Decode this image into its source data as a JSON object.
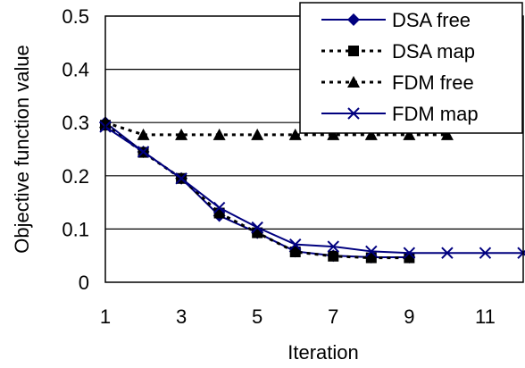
{
  "chart_data": {
    "type": "line",
    "xlabel": "Iteration",
    "ylabel": "Objective function value",
    "xlim": [
      1,
      12
    ],
    "ylim": [
      0,
      0.5
    ],
    "xticks": [
      1,
      3,
      5,
      7,
      9,
      11
    ],
    "yticks": [
      0,
      0.1,
      0.2,
      0.3,
      0.4,
      0.5
    ],
    "ytick_labels": [
      "0",
      "0.1",
      "0.2",
      "0.3",
      "0.4",
      "0.5"
    ],
    "grid": "horizontal",
    "legend_position": "top-right",
    "series": [
      {
        "name": "DSA free",
        "color": "#00007f",
        "line_style": "solid",
        "marker": "diamond",
        "x": [
          1,
          2,
          3,
          4,
          5,
          6,
          7,
          8,
          9
        ],
        "y": [
          0.3,
          0.245,
          0.195,
          0.125,
          0.093,
          0.058,
          0.05,
          0.047,
          0.047
        ]
      },
      {
        "name": "DSA map",
        "color": "#000000",
        "line_style": "dotted",
        "marker": "square",
        "x": [
          1,
          2,
          3,
          4,
          5,
          6,
          7,
          8,
          9
        ],
        "y": [
          0.295,
          0.244,
          0.195,
          0.13,
          0.093,
          0.057,
          0.049,
          0.046,
          0.046
        ]
      },
      {
        "name": "FDM free",
        "color": "#000000",
        "line_style": "dotted",
        "marker": "triangle",
        "x": [
          1,
          2,
          3,
          4,
          5,
          6,
          7,
          8,
          9,
          10
        ],
        "y": [
          0.3,
          0.277,
          0.277,
          0.277,
          0.277,
          0.277,
          0.277,
          0.277,
          0.277,
          0.277
        ]
      },
      {
        "name": "FDM map",
        "color": "#00007f",
        "line_style": "solid",
        "marker": "x",
        "x": [
          1,
          2,
          3,
          4,
          5,
          6,
          7,
          8,
          9,
          10,
          11,
          12
        ],
        "y": [
          0.292,
          0.245,
          0.195,
          0.14,
          0.103,
          0.071,
          0.067,
          0.058,
          0.055,
          0.055,
          0.055,
          0.055
        ]
      }
    ]
  }
}
